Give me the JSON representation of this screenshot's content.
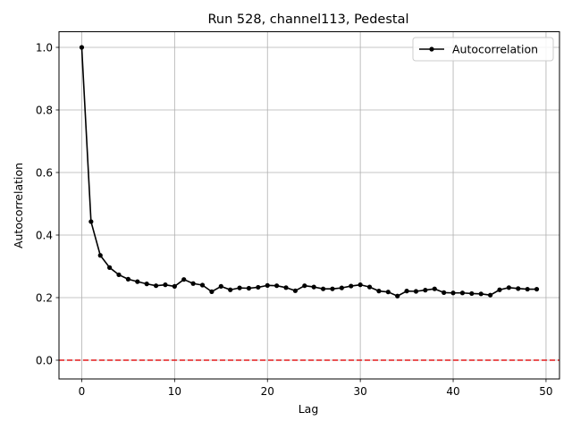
{
  "chart_data": {
    "type": "line",
    "title": "Run 528, channel113, Pedestal",
    "xlabel": "Lag",
    "ylabel": "Autocorrelation",
    "xlim": [
      -2.45,
      51.45
    ],
    "ylim": [
      -0.06,
      1.05
    ],
    "xticks": [
      0,
      10,
      20,
      30,
      40,
      50
    ],
    "yticks": [
      0.0,
      0.2,
      0.4,
      0.6,
      0.8,
      1.0
    ],
    "xtick_labels": [
      "0",
      "10",
      "20",
      "30",
      "40",
      "50"
    ],
    "ytick_labels": [
      "0.0",
      "0.2",
      "0.4",
      "0.6",
      "0.8",
      "1.0"
    ],
    "grid": true,
    "legend_position": "upper right",
    "series": [
      {
        "name": "Autocorrelation",
        "color": "#000000",
        "marker": "circle",
        "x": [
          0,
          1,
          2,
          3,
          4,
          5,
          6,
          7,
          8,
          9,
          10,
          11,
          12,
          13,
          14,
          15,
          16,
          17,
          18,
          19,
          20,
          21,
          22,
          23,
          24,
          25,
          26,
          27,
          28,
          29,
          30,
          31,
          32,
          33,
          34,
          35,
          36,
          37,
          38,
          39,
          40,
          41,
          42,
          43,
          44,
          45,
          46,
          47,
          48,
          49
        ],
        "values": [
          1.0,
          0.443,
          0.335,
          0.296,
          0.273,
          0.259,
          0.251,
          0.244,
          0.238,
          0.241,
          0.236,
          0.258,
          0.245,
          0.24,
          0.219,
          0.236,
          0.225,
          0.231,
          0.23,
          0.233,
          0.239,
          0.238,
          0.232,
          0.222,
          0.238,
          0.234,
          0.228,
          0.228,
          0.231,
          0.237,
          0.241,
          0.234,
          0.221,
          0.218,
          0.205,
          0.221,
          0.22,
          0.224,
          0.228,
          0.216,
          0.215,
          0.215,
          0.213,
          0.212,
          0.208,
          0.225,
          0.232,
          0.229,
          0.227,
          0.227
        ]
      }
    ],
    "reference_lines": [
      {
        "orientation": "horizontal",
        "y": 0.0,
        "color": "#e31a1c",
        "style": "dashed"
      }
    ]
  }
}
